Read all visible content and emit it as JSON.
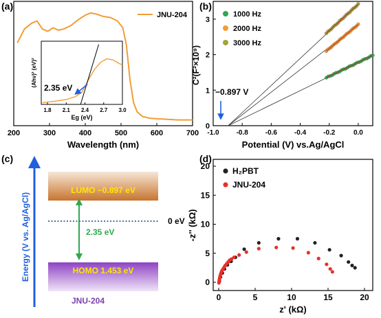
{
  "chart_data": [
    {
      "type": "line",
      "panel": "(a)",
      "xlabel": "Wavelength (nm)",
      "ylabel": "",
      "xlim": [
        200,
        700
      ],
      "xticks": [
        200,
        300,
        400,
        500,
        600,
        700
      ],
      "legend": [
        "JNU-204"
      ],
      "legend_position": "top-right",
      "series": [
        {
          "name": "JNU-204",
          "color": "#F39C34",
          "x": [
            210,
            230,
            250,
            265,
            280,
            295,
            310,
            325,
            340,
            360,
            380,
            400,
            415,
            430,
            450,
            470,
            490,
            505,
            515,
            525,
            535,
            545,
            560,
            580,
            600,
            630,
            660,
            700
          ],
          "y": [
            0.74,
            0.86,
            0.91,
            0.93,
            0.86,
            0.84,
            0.87,
            0.85,
            0.86,
            0.89,
            0.94,
            0.98,
            1.0,
            0.99,
            0.97,
            0.96,
            0.93,
            0.87,
            0.72,
            0.42,
            0.22,
            0.14,
            0.1,
            0.085,
            0.08,
            0.075,
            0.07,
            0.07
          ]
        }
      ],
      "inset": {
        "xlabel": "Eg (eV)",
        "ylabel": "(Ahν)² (eV)²",
        "xlim": [
          1.7,
          3.0
        ],
        "xticks": [
          "1.8",
          "2.1",
          "2.4",
          "2.7",
          "3.0"
        ],
        "annotation": "2.35 eV",
        "series": [
          {
            "x": [
              1.72,
              1.9,
              2.1,
              2.25,
              2.35,
              2.45,
              2.55,
              2.65,
              2.75,
              2.85,
              2.95,
              3.0
            ],
            "y": [
              0.03,
              0.05,
              0.08,
              0.13,
              0.2,
              0.4,
              0.58,
              0.7,
              0.76,
              0.74,
              0.68,
              0.66
            ]
          }
        ],
        "tangent": {
          "x": [
            2.33,
            2.62
          ],
          "y": [
            0.0,
            1.0
          ]
        }
      }
    },
    {
      "type": "scatter",
      "panel": "(b)",
      "xlabel": "Potential (V) vs.Ag/AgCl",
      "ylabel": "C²(F²×10⁹)",
      "xlim": [
        -1.0,
        0.1
      ],
      "ylim": [
        0,
        3.5
      ],
      "xticks": [
        "-1.0",
        "-0.8",
        "-0.6",
        "-0.4",
        "-0.2",
        "0.0"
      ],
      "yticks": [
        "0",
        "1",
        "2",
        "3"
      ],
      "annotation": "−0.897 V",
      "legend_position": "top-left",
      "series": [
        {
          "name": "1000 Hz",
          "color": "#2FA84F",
          "x_start": -0.22,
          "x_end": 0.1,
          "y_start": 1.35,
          "y_end": 1.98,
          "points": 25
        },
        {
          "name": "2000 Hz",
          "color": "#F39C34",
          "x_start": -0.22,
          "x_end": 0.0,
          "y_start": 2.1,
          "y_end": 2.85,
          "points": 20
        },
        {
          "name": "3000 Hz",
          "color": "#A3A23A",
          "x_start": -0.22,
          "x_end": 0.0,
          "y_start": 2.6,
          "y_end": 3.42,
          "points": 20
        }
      ],
      "fit_lines_intercept_x": -0.897
    },
    {
      "type": "diagram",
      "panel": "(c)",
      "ylabel": "Energy (V vs. Ag/AgCl)",
      "lumo_label": "LUMO −0.897 eV",
      "homo_label": "HOMO 1.453 eV",
      "gap_label": "2.35 eV",
      "zero_label": "0 eV",
      "material": "JNU-204"
    },
    {
      "type": "scatter",
      "panel": "(d)",
      "xlabel": "z' (kΩ)",
      "ylabel": "-z'' (kΩ)",
      "xlim": [
        0,
        20
      ],
      "ylim": [
        -1,
        20
      ],
      "xticks": [
        "0",
        "5",
        "10",
        "15",
        "20"
      ],
      "yticks": [
        "0",
        "5",
        "10",
        "15",
        "20"
      ],
      "legend_position": "top-left",
      "series": [
        {
          "name": "H2PBT",
          "color": "#222222",
          "x": [
            0.1,
            0.25,
            0.5,
            0.8,
            1.2,
            1.7,
            2.3,
            3.5,
            5.5,
            8.2,
            10.8,
            13.2,
            15.2,
            16.8,
            17.8,
            18.3,
            18.7
          ],
          "y": [
            0.2,
            0.9,
            1.6,
            2.3,
            3.0,
            3.6,
            4.3,
            5.7,
            6.8,
            7.5,
            7.5,
            6.8,
            5.6,
            4.6,
            3.5,
            2.9,
            2.5
          ]
        },
        {
          "name": "JNU-204",
          "color": "#E8302A",
          "x": [
            0.03,
            0.06,
            0.1,
            0.15,
            0.2,
            0.27,
            0.35,
            0.45,
            0.6,
            0.75,
            0.9,
            1.1,
            1.3,
            1.5,
            1.75,
            2.1,
            2.8,
            3.8,
            5.5,
            7.9,
            10.2,
            12.3,
            13.7,
            14.8,
            15.3,
            15.6
          ],
          "y": [
            -0.1,
            0.2,
            0.5,
            0.8,
            1.1,
            1.4,
            1.7,
            2.0,
            2.3,
            2.6,
            2.9,
            3.2,
            3.5,
            3.8,
            4.0,
            4.3,
            4.7,
            5.2,
            5.8,
            6.0,
            5.9,
            5.1,
            4.1,
            3.1,
            2.3,
            1.8
          ]
        }
      ]
    }
  ],
  "labels": {
    "panel_a": "(a)",
    "panel_b": "(b)",
    "panel_c": "(c)",
    "panel_d": "(d)",
    "a_xlabel": "Wavelength (nm)",
    "a_legend": "JNU-204",
    "a_inset_xlabel": "Eg (eV)",
    "a_inset_ylabel": "(Ahν)² (eV)²",
    "a_inset_annotation": "2.35 eV",
    "b_xlabel": "Potential (V) vs.Ag/AgCl",
    "b_ylabel": "C²(F²×10⁹)",
    "b_annotation": "−0.897 V",
    "c_ylabel": "Energy (V vs. Ag/AgCl)",
    "c_lumo": "LUMO −0.897 eV",
    "c_homo": "HOMO 1.453 eV",
    "c_gap": "2.35 eV",
    "c_zero": "0 eV",
    "c_material": "JNU-204",
    "d_xlabel": "z' (kΩ)",
    "d_ylabel": "-z'' (kΩ)",
    "d_legend_1": "H₂PBT",
    "d_legend_2": "JNU-204"
  }
}
